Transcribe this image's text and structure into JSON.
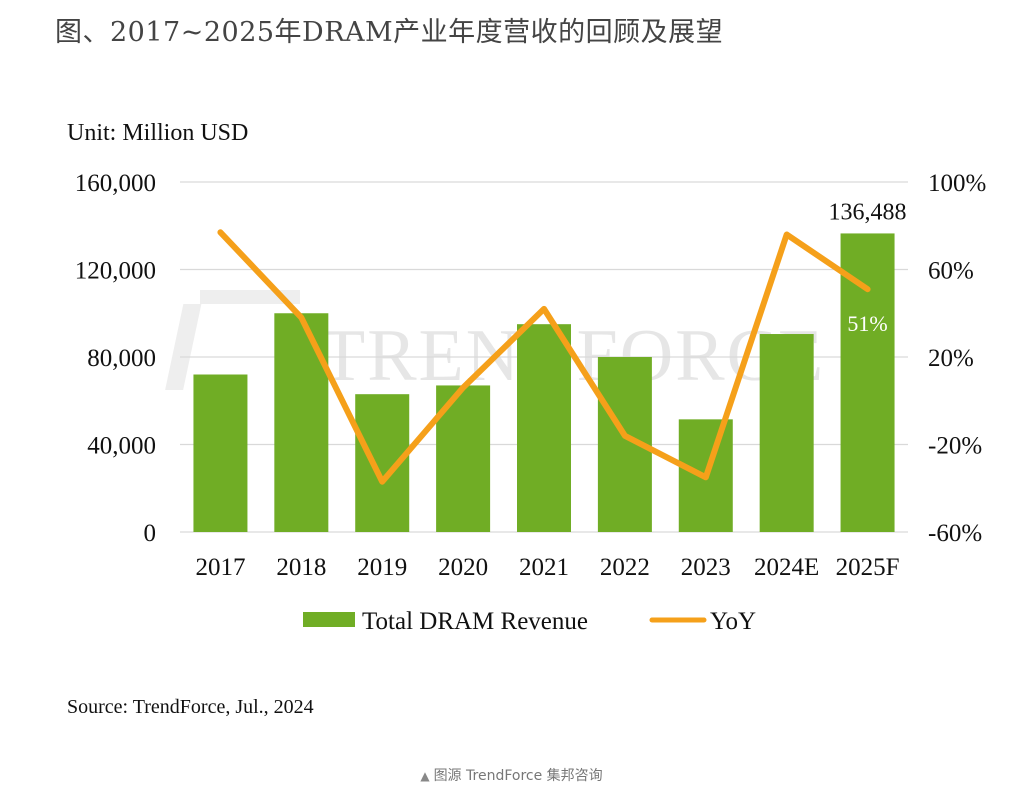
{
  "title": "图、2017~2025年DRAM产业年度营收的回顾及展望",
  "source": "Source: TrendForce, Jul., 2024",
  "caption": "图源 TrendForce 集邦咨询",
  "caption_icon": "triangle-up-icon",
  "watermark": "TRENDFORCE",
  "colors": {
    "bar": "#70AD25",
    "line": "#F5A01A",
    "grid": "#D9D9D9",
    "text": "#111111"
  },
  "chart_data": {
    "type": "bar",
    "unit_label": "Unit: Million USD",
    "categories": [
      "2017",
      "2018",
      "2019",
      "2020",
      "2021",
      "2022",
      "2023",
      "2024E",
      "2025F"
    ],
    "series": [
      {
        "name": "Total DRAM Revenue",
        "type": "bar",
        "axis": "left",
        "values": [
          72000,
          100000,
          63000,
          67000,
          95000,
          80000,
          51500,
          90500,
          136488
        ]
      },
      {
        "name": "YoY",
        "type": "line",
        "axis": "right",
        "values": [
          77,
          38,
          -37,
          6,
          42,
          -16,
          -35,
          76,
          51
        ]
      }
    ],
    "y_left": {
      "min": 0,
      "max": 160000,
      "ticks": [
        "160,000",
        "120,000",
        "80,000",
        "40,000",
        "0"
      ]
    },
    "y_right": {
      "min": -60,
      "max": 100,
      "ticks": [
        "100%",
        "60%",
        "20%",
        "-20%",
        "-60%"
      ]
    },
    "data_labels": {
      "bar_2025F": "136,488",
      "yoy_2025F": "51%"
    },
    "grid": true,
    "legend_position": "bottom"
  }
}
